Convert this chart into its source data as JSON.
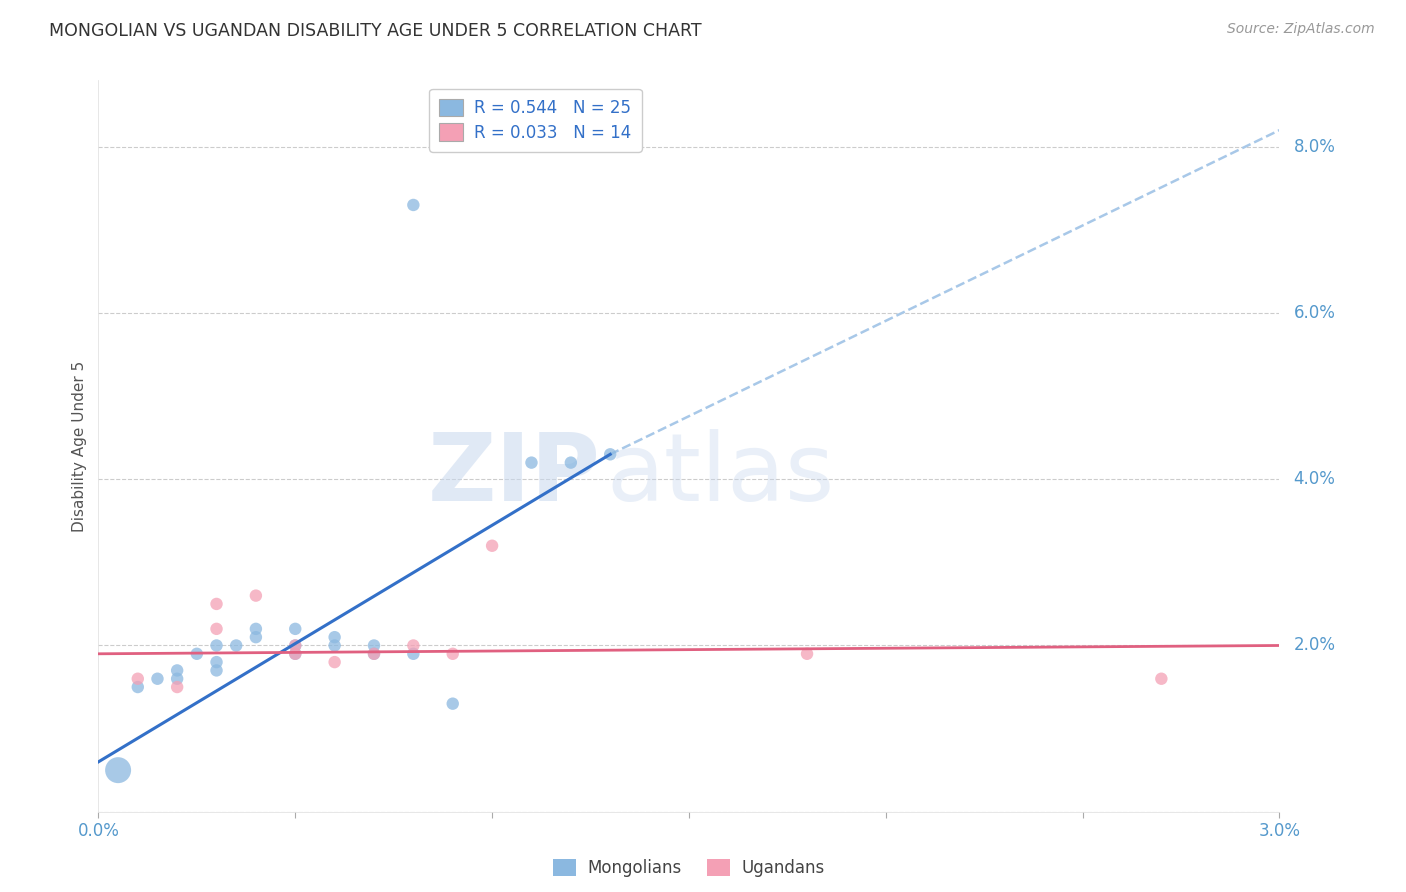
{
  "title": "MONGOLIAN VS UGANDAN DISABILITY AGE UNDER 5 CORRELATION CHART",
  "source": "Source: ZipAtlas.com",
  "ylabel": "Disability Age Under 5",
  "xlim": [
    0.0,
    0.03
  ],
  "ylim": [
    0.0,
    0.088
  ],
  "xticks": [
    0.0,
    0.005,
    0.01,
    0.015,
    0.02,
    0.025,
    0.03
  ],
  "yticks": [
    0.0,
    0.02,
    0.04,
    0.06,
    0.08
  ],
  "ytick_labels": [
    "",
    "2.0%",
    "4.0%",
    "6.0%",
    "8.0%"
  ],
  "xtick_labels": [
    "0.0%",
    "",
    "",
    "",
    "",
    "",
    "3.0%"
  ],
  "mongolian_R": "0.544",
  "mongolian_N": "25",
  "ugandan_R": "0.033",
  "ugandan_N": "14",
  "mongolian_color": "#8BB8E0",
  "ugandan_color": "#F4A0B5",
  "mongolian_line_color": "#3370C8",
  "ugandan_line_color": "#E06080",
  "dashed_line_color": "#A8C8E8",
  "background_color": "#FFFFFF",
  "grid_color": "#CCCCCC",
  "mon_x": [
    0.0005,
    0.001,
    0.0015,
    0.002,
    0.002,
    0.0025,
    0.003,
    0.003,
    0.003,
    0.0035,
    0.004,
    0.004,
    0.005,
    0.005,
    0.005,
    0.006,
    0.006,
    0.007,
    0.007,
    0.008,
    0.008,
    0.009,
    0.011,
    0.012,
    0.013
  ],
  "mon_y": [
    0.005,
    0.015,
    0.016,
    0.016,
    0.017,
    0.019,
    0.017,
    0.018,
    0.02,
    0.02,
    0.021,
    0.022,
    0.019,
    0.02,
    0.022,
    0.02,
    0.021,
    0.019,
    0.02,
    0.073,
    0.019,
    0.013,
    0.042,
    0.042,
    0.043
  ],
  "mon_sizes": [
    350,
    80,
    80,
    80,
    80,
    80,
    80,
    80,
    80,
    80,
    80,
    80,
    80,
    80,
    80,
    80,
    80,
    80,
    80,
    80,
    80,
    80,
    80,
    80,
    80
  ],
  "ug_x": [
    0.001,
    0.002,
    0.003,
    0.003,
    0.004,
    0.005,
    0.005,
    0.006,
    0.007,
    0.008,
    0.009,
    0.01,
    0.018,
    0.027
  ],
  "ug_y": [
    0.016,
    0.015,
    0.022,
    0.025,
    0.026,
    0.019,
    0.02,
    0.018,
    0.019,
    0.02,
    0.019,
    0.032,
    0.019,
    0.016
  ],
  "ug_sizes": [
    80,
    80,
    80,
    80,
    80,
    80,
    80,
    80,
    80,
    80,
    80,
    80,
    80,
    80
  ],
  "blue_line_x": [
    0.0,
    0.013
  ],
  "blue_line_y": [
    0.006,
    0.043
  ],
  "dash_line_x": [
    0.013,
    0.03
  ],
  "dash_line_y": [
    0.043,
    0.082
  ],
  "pink_line_x": [
    0.0,
    0.03
  ],
  "pink_line_y": [
    0.019,
    0.02
  ]
}
